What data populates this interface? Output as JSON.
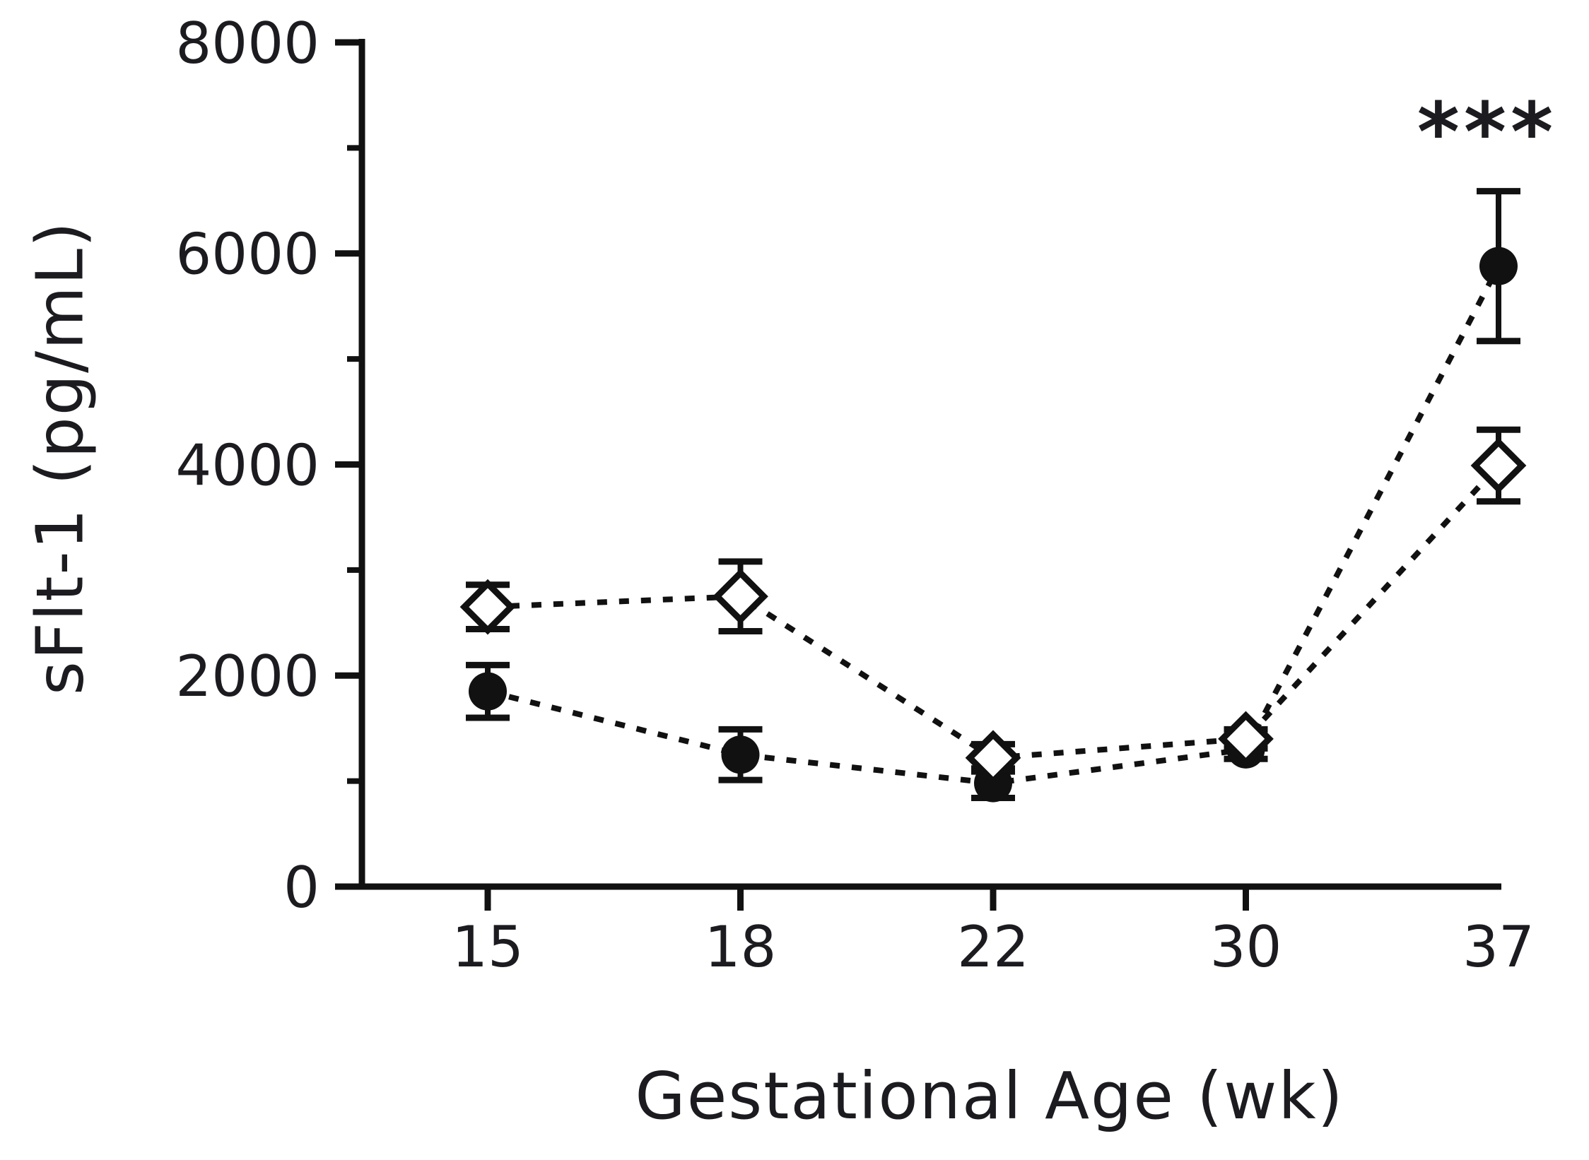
{
  "background": "#ffffff",
  "ink_color": "#111111",
  "text_color": "#1b1b20",
  "chart_data": {
    "type": "line",
    "title": "",
    "xlabel": "Gestational Age (wk)",
    "ylabel": "sFlt-1 (pg/mL)",
    "categories": [
      "15",
      "18",
      "22",
      "30",
      "37"
    ],
    "ylim": [
      0,
      8000
    ],
    "y_major_ticks": [
      0,
      2000,
      4000,
      6000,
      8000
    ],
    "y_minor_ticks": [
      1000,
      3000,
      5000,
      7000
    ],
    "x_ticks_drawn": [
      "15",
      "18",
      "22",
      "30"
    ],
    "grid": false,
    "legend": "none",
    "error_bars": true,
    "line_style": "dashed",
    "series": [
      {
        "name": "filled-circle-series",
        "marker": "filled-circle",
        "color": "#111111",
        "values": [
          1850,
          1250,
          980,
          1300,
          5880
        ],
        "errors": [
          250,
          240,
          140,
          90,
          710
        ]
      },
      {
        "name": "open-diamond-series",
        "marker": "open-diamond",
        "color": "#111111",
        "values": [
          2650,
          2750,
          1220,
          1400,
          3990
        ],
        "errors": [
          210,
          330,
          130,
          90,
          340
        ]
      }
    ],
    "annotation": {
      "text": "***",
      "category": "37",
      "y_value": 7270
    }
  }
}
